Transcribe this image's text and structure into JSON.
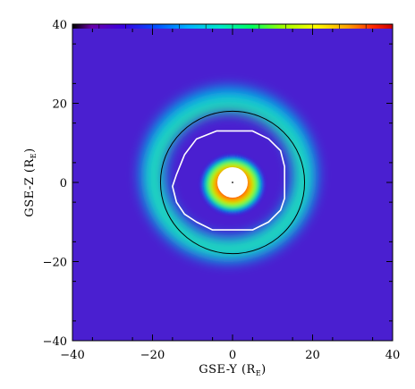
{
  "chart_data": {
    "type": "heatmap",
    "xlabel": "GSE-Y (R",
    "xlabel_sub": "E",
    "xlabel_close": ")",
    "ylabel": "GSE-Z (R",
    "ylabel_sub": "E",
    "ylabel_close": ")",
    "xlim": [
      -40,
      40
    ],
    "ylim": [
      -40,
      40
    ],
    "x_ticks": [
      -40,
      -20,
      0,
      20,
      40
    ],
    "x_tick_labels": [
      "−40",
      "−20",
      "0",
      "20",
      "40"
    ],
    "y_ticks": [
      -40,
      -20,
      0,
      20,
      40
    ],
    "y_tick_labels": [
      "−40",
      "−20",
      "0",
      "20",
      "40"
    ],
    "colorscale": [
      "#000000",
      "#6a00a8",
      "#3a00e0",
      "#0050ff",
      "#00b0ff",
      "#00e8c8",
      "#00ff60",
      "#a0ff00",
      "#ffff00",
      "#ffa000",
      "#ff2800",
      "#c80000"
    ],
    "background_level": 0.15,
    "field_features": [
      {
        "feature": "inner-core",
        "center": [
          0,
          0
        ],
        "radius": 7,
        "peak_level": 1.0
      },
      {
        "feature": "outer-ring",
        "center": [
          -1,
          2
        ],
        "radius": 19,
        "width": 4,
        "level": 0.5
      },
      {
        "feature": "earth-occulter",
        "center": [
          0,
          0
        ],
        "radius": 2
      }
    ],
    "reference_circle": {
      "center": [
        0,
        0
      ],
      "radius": 18,
      "color": "#000000"
    },
    "white_contour": [
      [
        -14,
        2
      ],
      [
        -12,
        7
      ],
      [
        -9,
        11
      ],
      [
        -4,
        13
      ],
      [
        1,
        13
      ],
      [
        5,
        13
      ],
      [
        9,
        11
      ],
      [
        12,
        8
      ],
      [
        13,
        4
      ],
      [
        13,
        0
      ],
      [
        13,
        -4
      ],
      [
        12,
        -7
      ],
      [
        9,
        -10
      ],
      [
        5,
        -12
      ],
      [
        0,
        -12
      ],
      [
        -5,
        -12
      ],
      [
        -9,
        -10
      ],
      [
        -12,
        -8
      ],
      [
        -14,
        -5
      ],
      [
        -15,
        -1
      ]
    ],
    "grid": false
  }
}
